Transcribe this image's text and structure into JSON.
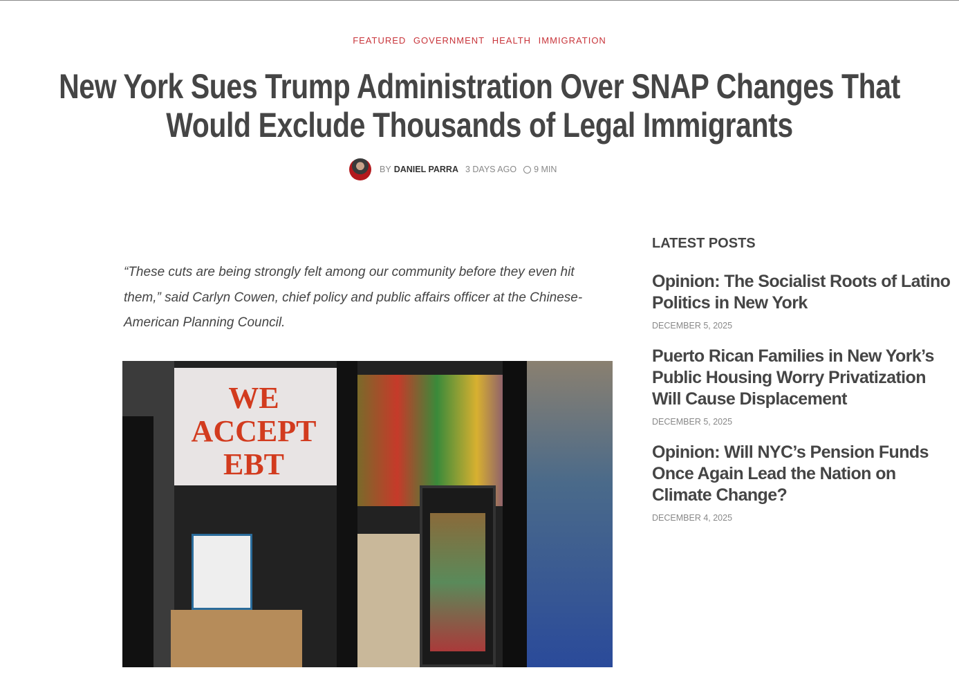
{
  "article": {
    "categories": [
      "FEATURED",
      "GOVERNMENT",
      "HEALTH",
      "IMMIGRATION"
    ],
    "title_line1": "New York Sues Trump Administration Over SNAP Changes That",
    "title_line2": "Would Exclude Thousands of Legal Immigrants",
    "by": "BY",
    "author": "DANIEL PARRA",
    "time_ago": "3 DAYS AGO",
    "read_time": "9 MIN",
    "quote": "“These cuts are being strongly felt among our community before they even hit them,” said Carlyn Cowen, chief policy and public affairs officer at the Chinese-American Planning Council.",
    "photo_sign": "WE ACCEPT EBT"
  },
  "sidebar": {
    "heading": "LATEST POSTS",
    "posts": [
      {
        "title": "Opinion: The Socialist Roots of Latino Politics in New York",
        "date": "DECEMBER 5, 2025"
      },
      {
        "title": "Puerto Rican Families in New York’s Public Housing Worry Privatization Will Cause Displacement",
        "date": "DECEMBER 5, 2025"
      },
      {
        "title": "Opinion: Will NYC’s Pension Funds Once Again Lead the Nation on Climate Change?",
        "date": "DECEMBER 4, 2025"
      }
    ]
  }
}
